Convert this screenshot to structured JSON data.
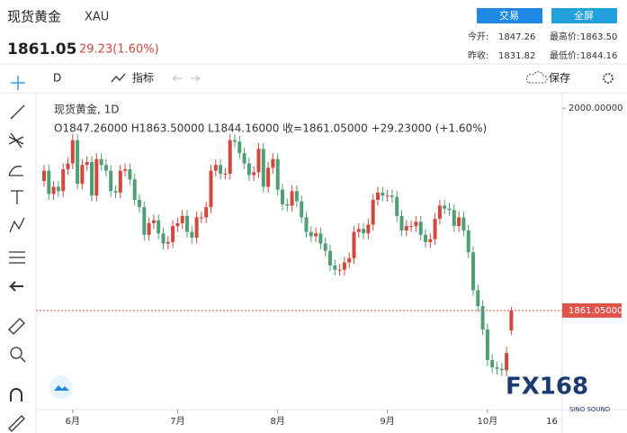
{
  "header": {
    "title": "现货黄金",
    "symbol": "XAU",
    "price": "1861.05",
    "change": "29.23(1.60%)",
    "buttons": [
      "交易",
      "全屏"
    ],
    "stats": [
      [
        "今开:",
        "1847.26",
        "最高价:",
        "1863.50"
      ],
      [
        "昨收:",
        "1831.82",
        "最低价:",
        "1844.16"
      ]
    ]
  },
  "toolbar": {
    "interval": "D",
    "indicators": "指标",
    "save": "保存"
  },
  "watermark": {
    "logo": "FX168",
    "sub": "SINO SOUND"
  },
  "chart_data": {
    "type": "candlestick",
    "title": "现货黄金, 1D",
    "subtitle": "O1847.26000   H1863.50000   L1844.16000   收=1861.05000   +29.23000 (+1.60%)",
    "categories": [
      null,
      null,
      null,
      null,
      null,
      null,
      "6月",
      null,
      null,
      null,
      null,
      null,
      null,
      null,
      null,
      null,
      null,
      null,
      null,
      null,
      null,
      null,
      null,
      null,
      null,
      null,
      null,
      null,
      "7月",
      null,
      null,
      null,
      null,
      null,
      null,
      null,
      null,
      null,
      null,
      null,
      null,
      null,
      null,
      null,
      null,
      null,
      null,
      null,
      null,
      "8月",
      null,
      null,
      null,
      null,
      null,
      null,
      null,
      null,
      null,
      null,
      null,
      null,
      null,
      null,
      null,
      null,
      null,
      null,
      null,
      null,
      null,
      null,
      "9月",
      null,
      null,
      null,
      null,
      null,
      null,
      null,
      null,
      null,
      null,
      null,
      null,
      null,
      null,
      null,
      null,
      null,
      null,
      null,
      null,
      "10月",
      null,
      null,
      null,
      null,
      null
    ],
    "x_end_label": "16",
    "open": [
      1950,
      1957,
      1941,
      1946,
      1943,
      1958,
      1962,
      1978,
      1948,
      1961,
      1963,
      1940,
      1965,
      1961,
      1957,
      1943,
      1942,
      1957,
      1958,
      1951,
      1937,
      1932,
      1913,
      1921,
      1923,
      1914,
      1907,
      1908,
      1919,
      1921,
      1926,
      1915,
      1911,
      1925,
      1925,
      1932,
      1957,
      1961,
      1955,
      1955,
      1978,
      1977,
      1969,
      1962,
      1954,
      1956,
      1972,
      1946,
      1959,
      1965,
      1944,
      1934,
      1933,
      1943,
      1936,
      1925,
      1915,
      1912,
      1914,
      1907,
      1902,
      1892,
      1889,
      1889,
      1894,
      1897,
      1915,
      1917,
      1914,
      1920,
      1937,
      1942,
      1940,
      1940,
      1939,
      1926,
      1916,
      1919,
      1919,
      1922,
      1913,
      1908,
      1910,
      1924,
      1933,
      1931,
      1930,
      1919,
      1925,
      1916,
      1901,
      1875,
      1864,
      1848,
      1827,
      1822,
      1821,
      1820,
      1847.26
    ],
    "high": [
      1961,
      1961,
      1950,
      1950,
      1962,
      1966,
      1982,
      1982,
      1965,
      1967,
      1967,
      1969,
      1969,
      1965,
      1961,
      1947,
      1961,
      1962,
      1962,
      1955,
      1941,
      1936,
      1925,
      1927,
      1927,
      1918,
      1912,
      1923,
      1925,
      1930,
      1930,
      1919,
      1929,
      1929,
      1936,
      1961,
      1965,
      1965,
      1959,
      1982,
      1982,
      1981,
      1973,
      1966,
      1960,
      1976,
      1976,
      1963,
      1969,
      1969,
      1948,
      1938,
      1947,
      1947,
      1940,
      1929,
      1919,
      1918,
      1918,
      1911,
      1906,
      1896,
      1893,
      1898,
      1901,
      1919,
      1921,
      1921,
      1924,
      1941,
      1946,
      1946,
      1944,
      1944,
      1943,
      1930,
      1923,
      1923,
      1926,
      1926,
      1917,
      1914,
      1928,
      1937,
      1937,
      1935,
      1934,
      1929,
      1929,
      1920,
      1905,
      1879,
      1868,
      1852,
      1831,
      1826,
      1825,
      1836,
      1863.5
    ],
    "low": [
      1946,
      1937,
      1937,
      1939,
      1939,
      1954,
      1958,
      1944,
      1944,
      1957,
      1936,
      1936,
      1957,
      1953,
      1939,
      1938,
      1938,
      1953,
      1947,
      1933,
      1928,
      1909,
      1909,
      1917,
      1910,
      1903,
      1903,
      1904,
      1915,
      1917,
      1911,
      1907,
      1907,
      1921,
      1921,
      1928,
      1953,
      1951,
      1951,
      1951,
      1973,
      1965,
      1958,
      1950,
      1950,
      1952,
      1942,
      1942,
      1955,
      1940,
      1930,
      1929,
      1929,
      1932,
      1921,
      1911,
      1908,
      1908,
      1903,
      1898,
      1888,
      1885,
      1885,
      1885,
      1890,
      1893,
      1911,
      1910,
      1910,
      1916,
      1933,
      1936,
      1936,
      1935,
      1922,
      1912,
      1912,
      1915,
      1915,
      1909,
      1904,
      1904,
      1906,
      1920,
      1927,
      1926,
      1915,
      1915,
      1912,
      1897,
      1871,
      1860,
      1844,
      1823,
      1818,
      1817,
      1816,
      1816,
      1844.16
    ],
    "close": [
      1957,
      1941,
      1946,
      1943,
      1958,
      1962,
      1978,
      1948,
      1961,
      1963,
      1940,
      1965,
      1961,
      1957,
      1943,
      1942,
      1957,
      1958,
      1951,
      1937,
      1932,
      1913,
      1921,
      1923,
      1914,
      1907,
      1908,
      1919,
      1921,
      1926,
      1915,
      1911,
      1925,
      1925,
      1932,
      1957,
      1961,
      1955,
      1955,
      1978,
      1977,
      1969,
      1962,
      1954,
      1956,
      1972,
      1946,
      1959,
      1965,
      1944,
      1934,
      1933,
      1943,
      1936,
      1925,
      1915,
      1912,
      1914,
      1907,
      1902,
      1892,
      1889,
      1889,
      1894,
      1897,
      1915,
      1917,
      1914,
      1920,
      1937,
      1942,
      1940,
      1940,
      1939,
      1926,
      1916,
      1919,
      1919,
      1922,
      1913,
      1908,
      1910,
      1924,
      1933,
      1931,
      1930,
      1919,
      1925,
      1916,
      1901,
      1875,
      1864,
      1848,
      1827,
      1822,
      1821,
      1820,
      1831.82,
      1861.05
    ],
    "up_color": "#d0483e",
    "down_color": "#4f9e76",
    "ylim": [
      1793,
      2005
    ],
    "yticks": [
      {
        "value": 2000,
        "label": "2000.00000"
      }
    ],
    "price_line": {
      "value": 1861.05,
      "label": "1861.05000",
      "color": "#e0524a"
    }
  }
}
